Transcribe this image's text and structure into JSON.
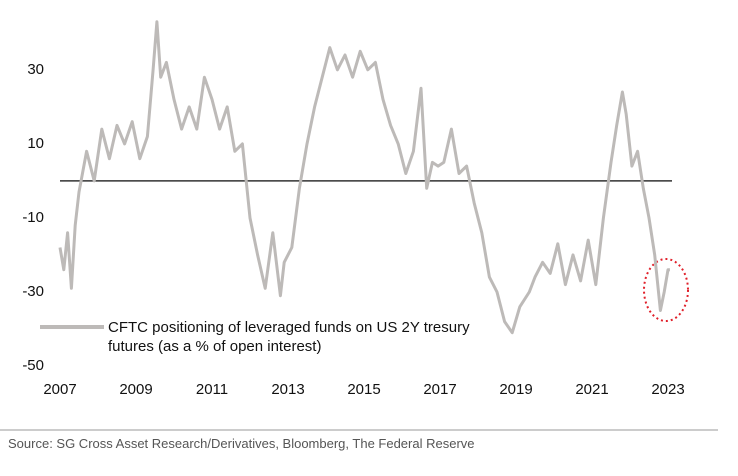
{
  "chart_data": {
    "type": "line",
    "xlim": [
      2007,
      2023.2
    ],
    "xticks": [
      2007,
      2009,
      2011,
      2013,
      2015,
      2017,
      2019,
      2021,
      2023
    ],
    "ylim": [
      -50,
      44
    ],
    "yticks": [
      -50,
      -30,
      -10,
      10,
      30
    ],
    "reference_line": 0,
    "grid": false,
    "series": [
      {
        "name": "CFTC positioning of leveraged funds on US 2Y tresury futures (as a % of open interest)",
        "color": "#bdbab8",
        "x": [
          2007.0,
          2007.1,
          2007.2,
          2007.3,
          2007.4,
          2007.5,
          2007.7,
          2007.9,
          2008.1,
          2008.3,
          2008.5,
          2008.7,
          2008.9,
          2009.1,
          2009.3,
          2009.45,
          2009.55,
          2009.65,
          2009.8,
          2010.0,
          2010.2,
          2010.4,
          2010.6,
          2010.8,
          2011.0,
          2011.2,
          2011.4,
          2011.6,
          2011.8,
          2012.0,
          2012.2,
          2012.4,
          2012.6,
          2012.8,
          2012.9,
          2013.1,
          2013.3,
          2013.5,
          2013.7,
          2013.9,
          2014.1,
          2014.3,
          2014.5,
          2014.7,
          2014.9,
          2015.1,
          2015.3,
          2015.5,
          2015.7,
          2015.9,
          2016.1,
          2016.3,
          2016.5,
          2016.65,
          2016.8,
          2016.95,
          2017.1,
          2017.3,
          2017.5,
          2017.7,
          2017.9,
          2018.1,
          2018.3,
          2018.5,
          2018.7,
          2018.9,
          2019.1,
          2019.35,
          2019.5,
          2019.7,
          2019.9,
          2020.1,
          2020.3,
          2020.5,
          2020.7,
          2020.9,
          2021.1,
          2021.3,
          2021.5,
          2021.65,
          2021.8,
          2021.9,
          2022.05,
          2022.2,
          2022.35,
          2022.5,
          2022.65,
          2022.8,
          2022.9,
          2023.0,
          2023.05
        ],
        "values": [
          -18,
          -24,
          -14,
          -29,
          -12,
          -3,
          8,
          0,
          14,
          6,
          15,
          10,
          16,
          6,
          12,
          30,
          43,
          28,
          32,
          22,
          14,
          20,
          14,
          28,
          22,
          14,
          20,
          8,
          10,
          -10,
          -20,
          -29,
          -14,
          -31,
          -22,
          -18,
          -2,
          10,
          20,
          28,
          36,
          30,
          34,
          28,
          35,
          30,
          32,
          22,
          15,
          10,
          2,
          8,
          25,
          -2,
          5,
          4,
          5,
          14,
          2,
          4,
          -6,
          -14,
          -26,
          -30,
          -38,
          -41,
          -34,
          -30,
          -26,
          -22,
          -25,
          -17,
          -28,
          -20,
          -27,
          -16,
          -28,
          -10,
          5,
          15,
          24,
          18,
          4,
          8,
          -2,
          -10,
          -20,
          -35,
          -30,
          -24,
          -24
        ]
      }
    ],
    "source": "Source: SG Cross Asset Research/Derivatives, Bloomberg, The Federal Reserve"
  }
}
